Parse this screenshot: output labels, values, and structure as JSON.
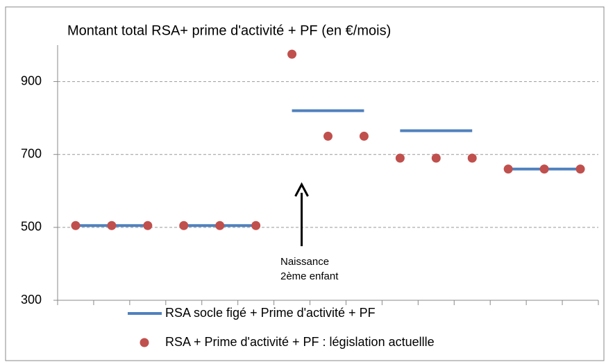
{
  "chart_data": {
    "type": "line_dots",
    "title": "Montant total RSA+ prime d'activité + PF (en €/mois)",
    "categories": [
      null,
      null,
      null,
      null,
      null,
      null,
      null,
      null,
      null,
      null,
      null,
      null,
      null,
      null,
      null
    ],
    "series": [
      {
        "name": "RSA socle figé + Prime d'activité + PF",
        "color": "#4f81bd",
        "style": "line",
        "gaps_after": [
          2,
          5,
          8,
          11
        ],
        "values": [
          505,
          505,
          505,
          505,
          505,
          505,
          820,
          820,
          820,
          765,
          765,
          765,
          660,
          660,
          660
        ]
      },
      {
        "name": "RSA + Prime d'activité + PF :  législation actuellle",
        "color": "#c0504d",
        "style": "dots",
        "values": [
          505,
          505,
          505,
          505,
          505,
          505,
          975,
          750,
          750,
          690,
          690,
          690,
          660,
          660,
          660
        ]
      }
    ],
    "annotation": {
      "lines": [
        "Naissance",
        "2ème enfant"
      ],
      "category": 6
    },
    "ylim": [
      300,
      1000
    ],
    "yticks": [
      300,
      500,
      700,
      900
    ],
    "grid": true
  }
}
